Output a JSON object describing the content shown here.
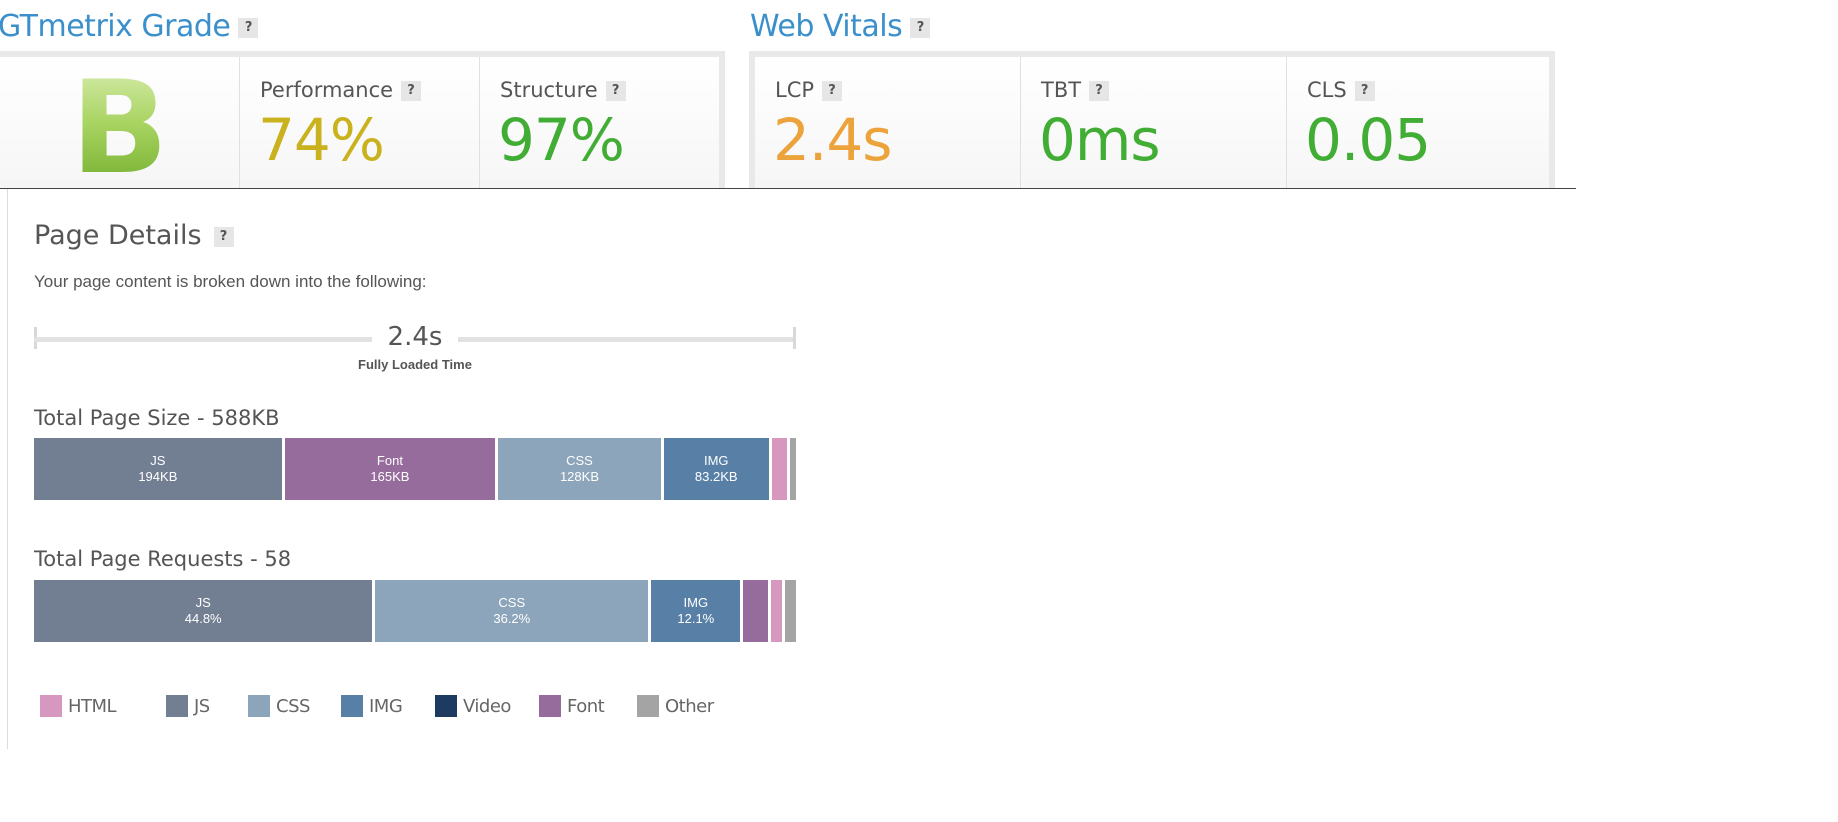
{
  "grade_section": {
    "title": "GTmetrix Grade",
    "help": "?",
    "grade": "B",
    "performance": {
      "label": "Performance",
      "value": "74%",
      "color": "#c9b21d"
    },
    "structure": {
      "label": "Structure",
      "value": "97%",
      "color": "#41ad34"
    }
  },
  "vitals_section": {
    "title": "Web Vitals",
    "help": "?",
    "lcp": {
      "label": "LCP",
      "value": "2.4s",
      "color": "#eda33c"
    },
    "tbt": {
      "label": "TBT",
      "value": "0ms",
      "color": "#41ad34"
    },
    "cls": {
      "label": "CLS",
      "value": "0.05",
      "color": "#41ad34"
    }
  },
  "page_details": {
    "title": "Page Details",
    "help": "?",
    "subtitle": "Your page content is broken down into the following:",
    "fully_loaded_value": "2.4s",
    "fully_loaded_label": "Fully Loaded Time",
    "size": {
      "title": "Total Page Size - 588KB",
      "segments": [
        {
          "name": "JS",
          "value": "194KB",
          "share": 33.0,
          "color": "#727f93"
        },
        {
          "name": "Font",
          "value": "165KB",
          "share": 28.1,
          "color": "#966c9c"
        },
        {
          "name": "CSS",
          "value": "128KB",
          "share": 21.8,
          "color": "#8ca5ba"
        },
        {
          "name": "IMG",
          "value": "83.2KB",
          "share": 14.2,
          "color": "#5880a7"
        },
        {
          "name": "",
          "value": "",
          "share": 2.4,
          "color": "#d698bf"
        },
        {
          "name": "",
          "value": "",
          "share": 0.8,
          "color": "#a4a4a4"
        }
      ]
    },
    "requests": {
      "title": "Total Page Requests - 58",
      "segments": [
        {
          "name": "JS",
          "value": "44.8%",
          "share": 44.8,
          "color": "#727f93"
        },
        {
          "name": "CSS",
          "value": "36.2%",
          "share": 36.2,
          "color": "#8ca5ba"
        },
        {
          "name": "IMG",
          "value": "12.1%",
          "share": 12.1,
          "color": "#5880a7"
        },
        {
          "name": "",
          "value": "",
          "share": 3.6,
          "color": "#966c9c"
        },
        {
          "name": "",
          "value": "",
          "share": 1.8,
          "color": "#d698bf"
        },
        {
          "name": "",
          "value": "",
          "share": 1.5,
          "color": "#a4a4a4"
        }
      ]
    },
    "legend": [
      {
        "label": "HTML",
        "color": "#d698bf"
      },
      {
        "label": "JS",
        "color": "#727f93"
      },
      {
        "label": "CSS",
        "color": "#8ca5ba"
      },
      {
        "label": "IMG",
        "color": "#5880a7"
      },
      {
        "label": "Video",
        "color": "#1d3b61"
      },
      {
        "label": "Font",
        "color": "#966c9c"
      },
      {
        "label": "Other",
        "color": "#a4a4a4"
      }
    ]
  }
}
